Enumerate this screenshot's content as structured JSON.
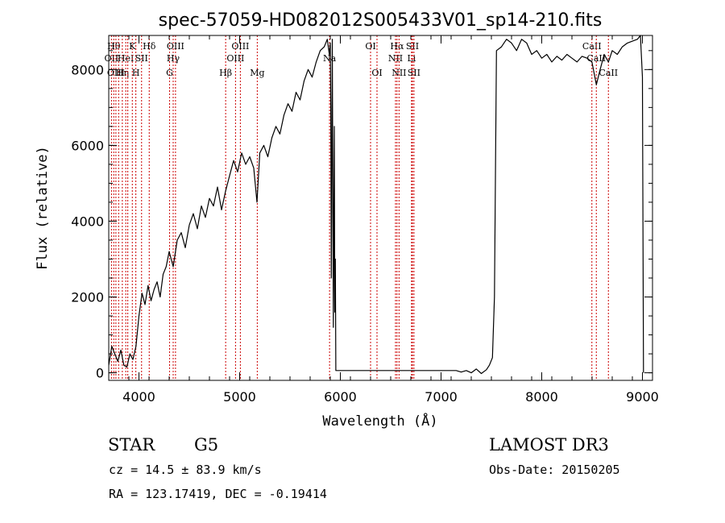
{
  "chart_data": {
    "type": "line",
    "title": "spec-57059-HD082012S005433V01_sp14-210.fits",
    "xlabel": "Wavelength (Å)",
    "ylabel": "Flux (relative)",
    "xlim": [
      3700,
      9100
    ],
    "ylim": [
      -200,
      8900
    ],
    "xticks": [
      4000,
      5000,
      6000,
      7000,
      8000,
      9000
    ],
    "xtick_labels": [
      "4000",
      "5000",
      "6000",
      "7000",
      "8000",
      "9000"
    ],
    "yticks": [
      0,
      2000,
      4000,
      6000,
      8000
    ],
    "ytick_labels": [
      "0",
      "2000",
      "4000",
      "6000",
      "8000"
    ],
    "series": [
      {
        "name": "spectrum",
        "x": [
          3700,
          3730,
          3760,
          3790,
          3820,
          3850,
          3880,
          3910,
          3940,
          3970,
          4000,
          4030,
          4060,
          4090,
          4120,
          4150,
          4180,
          4210,
          4240,
          4270,
          4300,
          4340,
          4380,
          4420,
          4460,
          4500,
          4540,
          4580,
          4620,
          4660,
          4700,
          4740,
          4780,
          4820,
          4861,
          4900,
          4940,
          4980,
          5020,
          5060,
          5100,
          5140,
          5172,
          5200,
          5240,
          5280,
          5320,
          5360,
          5400,
          5440,
          5480,
          5520,
          5560,
          5600,
          5640,
          5680,
          5720,
          5760,
          5800,
          5840,
          5870,
          5890,
          5900,
          5905,
          5910,
          5920,
          5930,
          5940,
          5945,
          5950,
          5955,
          6000,
          6500,
          7000,
          7150,
          7200,
          7250,
          7300,
          7350,
          7400,
          7450,
          7480,
          7510,
          7530,
          7550,
          7600,
          7650,
          7700,
          7750,
          7800,
          7850,
          7900,
          7950,
          8000,
          8050,
          8100,
          8150,
          8200,
          8250,
          8300,
          8350,
          8400,
          8450,
          8498,
          8542,
          8580,
          8620,
          8662,
          8700,
          8750,
          8800,
          8850,
          8900,
          8950,
          8980,
          9000,
          9010
        ],
        "y": [
          200,
          700,
          500,
          300,
          600,
          200,
          150,
          500,
          350,
          700,
          1500,
          2100,
          1800,
          2300,
          1900,
          2200,
          2400,
          2000,
          2600,
          2800,
          3200,
          2800,
          3500,
          3700,
          3300,
          3900,
          4200,
          3800,
          4400,
          4100,
          4600,
          4400,
          4900,
          4300,
          4800,
          5200,
          5600,
          5300,
          5800,
          5500,
          5700,
          5400,
          4500,
          5800,
          6000,
          5700,
          6200,
          6500,
          6300,
          6800,
          7100,
          6900,
          7400,
          7200,
          7700,
          8000,
          7800,
          8200,
          8500,
          8600,
          8800,
          8400,
          8700,
          7000,
          2500,
          8800,
          1200,
          6500,
          1600,
          3000,
          60,
          60,
          60,
          60,
          60,
          20,
          60,
          0,
          100,
          -20,
          80,
          200,
          400,
          2000,
          8500,
          8600,
          8800,
          8700,
          8500,
          8800,
          8700,
          8400,
          8500,
          8300,
          8400,
          8200,
          8350,
          8250,
          8400,
          8300,
          8200,
          8350,
          8300,
          8200,
          7600,
          8000,
          8400,
          8200,
          8500,
          8400,
          8600,
          8700,
          8750,
          8800,
          8900,
          7800,
          0
        ]
      }
    ],
    "line_markers": [
      {
        "wavelength": 3727,
        "label": "OII",
        "row": 2
      },
      {
        "wavelength": 3750,
        "label": "Hθ",
        "row": 1
      },
      {
        "wavelength": 3771,
        "label": "OIII",
        "row": 3
      },
      {
        "wavelength": 3798,
        "label": "",
        "row": 0
      },
      {
        "wavelength": 3835,
        "label": "Hη",
        "row": 3
      },
      {
        "wavelength": 3869,
        "label": "HeI",
        "row": 2
      },
      {
        "wavelength": 3889,
        "label": "",
        "row": 0
      },
      {
        "wavelength": 3934,
        "label": "K",
        "row": 1
      },
      {
        "wavelength": 3969,
        "label": "H",
        "row": 3
      },
      {
        "wavelength": 4026,
        "label": "SII",
        "row": 2
      },
      {
        "wavelength": 4102,
        "label": "Hδ",
        "row": 1
      },
      {
        "wavelength": 4304,
        "label": "G",
        "row": 3
      },
      {
        "wavelength": 4340,
        "label": "Hγ",
        "row": 2
      },
      {
        "wavelength": 4363,
        "label": "OIII",
        "row": 1
      },
      {
        "wavelength": 4861,
        "label": "Hβ",
        "row": 3
      },
      {
        "wavelength": 4959,
        "label": "OIII",
        "row": 2
      },
      {
        "wavelength": 5007,
        "label": "OIII",
        "row": 1
      },
      {
        "wavelength": 5175,
        "label": "Mg",
        "row": 3
      },
      {
        "wavelength": 5893,
        "label": "Na",
        "row": 2
      },
      {
        "wavelength": 6300,
        "label": "OI",
        "row": 1
      },
      {
        "wavelength": 6364,
        "label": "OI",
        "row": 3
      },
      {
        "wavelength": 6548,
        "label": "NII",
        "row": 2
      },
      {
        "wavelength": 6563,
        "label": "Hα",
        "row": 1
      },
      {
        "wavelength": 6583,
        "label": "NII",
        "row": 3
      },
      {
        "wavelength": 6707,
        "label": "Li",
        "row": 2
      },
      {
        "wavelength": 6716,
        "label": "SII",
        "row": 1
      },
      {
        "wavelength": 6731,
        "label": "SII",
        "row": 3
      },
      {
        "wavelength": 8498,
        "label": "CaII",
        "row": 1
      },
      {
        "wavelength": 8542,
        "label": "CaII",
        "row": 2
      },
      {
        "wavelength": 8662,
        "label": "CaII",
        "row": 3
      }
    ]
  },
  "info": {
    "class": "STAR",
    "subclass": "G5",
    "survey": "LAMOST DR3",
    "redshift": "cz = 14.5 ± 83.9 km/s",
    "obs_date": "Obs-Date: 20150205",
    "coords": "RA = 123.17419, DEC =  -0.19414"
  },
  "colors": {
    "spectrum": "#000000",
    "marker": "#cc0000"
  }
}
